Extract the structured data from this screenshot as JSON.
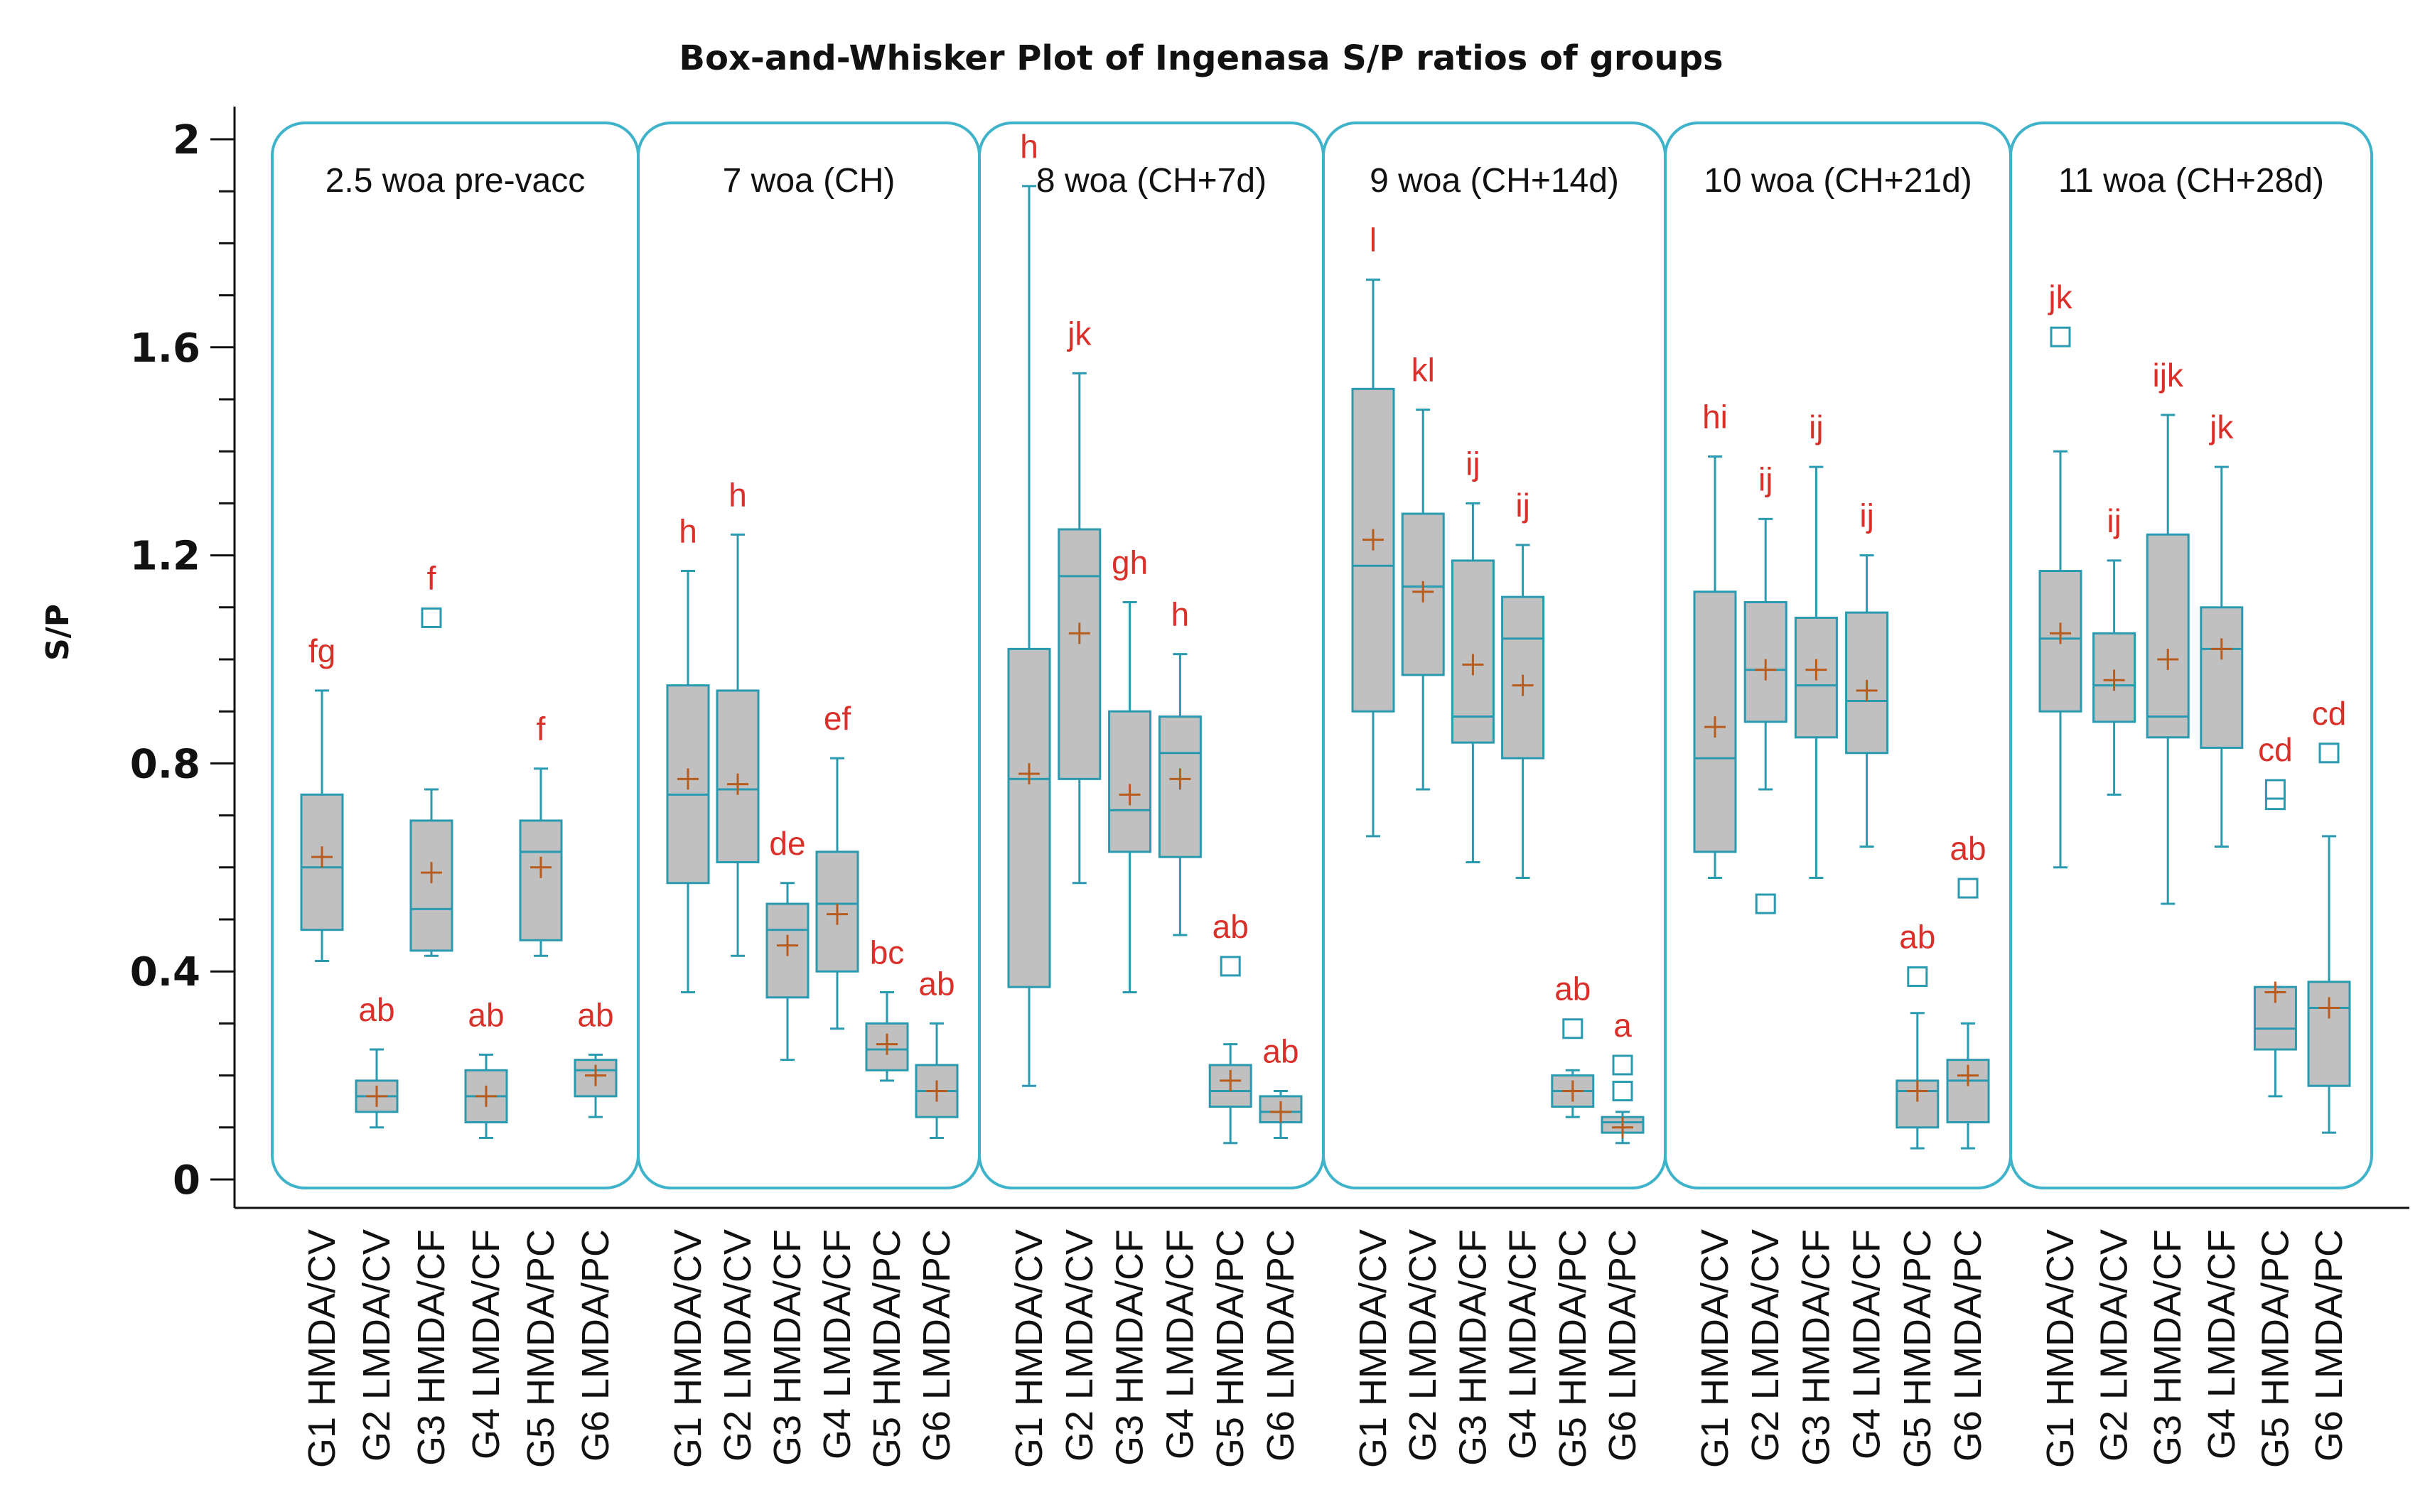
{
  "colors": {
    "panel_border": "#3fb3c9",
    "box_fill": "#c0c0c0",
    "box_stroke": "#2a9ab0",
    "mean_marker": "#b85c1e",
    "letter": "#d9302a",
    "axis": "#111111",
    "outlier_alt": "#2a8a6a"
  },
  "chart_data": {
    "type": "box",
    "title": "Box-and-Whisker Plot of Ingenasa S/P ratios of groups",
    "ylabel": "S/P",
    "xlabel": "",
    "ylim": [
      0,
      2.05
    ],
    "yticks": [
      {
        "value": 0,
        "label": "0"
      },
      {
        "value": 0.4,
        "label": "0.4"
      },
      {
        "value": 0.8,
        "label": "0.8"
      },
      {
        "value": 1.2,
        "label": "1.2"
      },
      {
        "value": 1.6,
        "label": "1.6"
      },
      {
        "value": 2.0,
        "label": "2"
      }
    ],
    "yminor_step": 0.1,
    "panels": [
      {
        "label": "2.5 woa pre-vacc",
        "groups": [
          {
            "name": "G1 HMDA/CV",
            "min": 0.42,
            "q1": 0.48,
            "median": 0.6,
            "q3": 0.74,
            "max": 0.94,
            "mean": 0.62,
            "letter": "fg",
            "outliers": []
          },
          {
            "name": "G2 LMDA/CV",
            "min": 0.1,
            "q1": 0.13,
            "median": 0.16,
            "q3": 0.19,
            "max": 0.25,
            "mean": 0.16,
            "letter": "ab",
            "outliers": []
          },
          {
            "name": "G3 HMDA/CF",
            "min": 0.43,
            "q1": 0.44,
            "median": 0.52,
            "q3": 0.69,
            "max": 0.75,
            "mean": 0.59,
            "letter": "f",
            "outliers": [
              1.08
            ]
          },
          {
            "name": "G4 LMDA/CF",
            "min": 0.08,
            "q1": 0.11,
            "median": 0.16,
            "q3": 0.21,
            "max": 0.24,
            "mean": 0.16,
            "letter": "ab",
            "outliers": []
          },
          {
            "name": "G5 HMDA/PC",
            "min": 0.43,
            "q1": 0.46,
            "median": 0.63,
            "q3": 0.69,
            "max": 0.79,
            "mean": 0.6,
            "letter": "f",
            "outliers": []
          },
          {
            "name": "G6 LMDA/PC",
            "min": 0.12,
            "q1": 0.16,
            "median": 0.21,
            "q3": 0.23,
            "max": 0.24,
            "mean": 0.2,
            "letter": "ab",
            "outliers": []
          }
        ]
      },
      {
        "label": "7 woa (CH)",
        "groups": [
          {
            "name": "G1 HMDA/CV",
            "min": 0.36,
            "q1": 0.57,
            "median": 0.74,
            "q3": 0.95,
            "max": 1.17,
            "mean": 0.77,
            "letter": "h",
            "outliers": []
          },
          {
            "name": "G2 LMDA/CV",
            "min": 0.43,
            "q1": 0.61,
            "median": 0.75,
            "q3": 0.94,
            "max": 1.24,
            "mean": 0.76,
            "letter": "h",
            "outliers": []
          },
          {
            "name": "G3 HMDA/CF",
            "min": 0.23,
            "q1": 0.35,
            "median": 0.48,
            "q3": 0.53,
            "max": 0.57,
            "mean": 0.45,
            "letter": "de",
            "outliers": []
          },
          {
            "name": "G4 LMDA/CF",
            "min": 0.29,
            "q1": 0.4,
            "median": 0.53,
            "q3": 0.63,
            "max": 0.81,
            "mean": 0.51,
            "letter": "ef",
            "outliers": []
          },
          {
            "name": "G5 HMDA/PC",
            "min": 0.19,
            "q1": 0.21,
            "median": 0.25,
            "q3": 0.3,
            "max": 0.36,
            "mean": 0.26,
            "letter": "bc",
            "outliers": []
          },
          {
            "name": "G6 LMDA/PC",
            "min": 0.08,
            "q1": 0.12,
            "median": 0.17,
            "q3": 0.22,
            "max": 0.3,
            "mean": 0.17,
            "letter": "ab",
            "outliers": []
          }
        ]
      },
      {
        "label": "8 woa (CH+7d)",
        "groups": [
          {
            "name": "G1 HMDA/CV",
            "min": 0.18,
            "q1": 0.37,
            "median": 0.77,
            "q3": 1.02,
            "max": 1.91,
            "mean": 0.78,
            "letter": "h",
            "outliers": []
          },
          {
            "name": "G2 LMDA/CV",
            "min": 0.57,
            "q1": 0.77,
            "median": 1.16,
            "q3": 1.25,
            "max": 1.55,
            "mean": 1.05,
            "letter": "jk",
            "outliers": []
          },
          {
            "name": "G3 HMDA/CF",
            "min": 0.36,
            "q1": 0.63,
            "median": 0.71,
            "q3": 0.9,
            "max": 1.11,
            "mean": 0.74,
            "letter": "gh",
            "outliers": []
          },
          {
            "name": "G4 LMDA/CF",
            "min": 0.47,
            "q1": 0.62,
            "median": 0.82,
            "q3": 0.89,
            "max": 1.01,
            "mean": 0.77,
            "letter": "h",
            "outliers": []
          },
          {
            "name": "G5 HMDA/PC",
            "min": 0.07,
            "q1": 0.14,
            "median": 0.17,
            "q3": 0.22,
            "max": 0.26,
            "mean": 0.19,
            "letter": "ab",
            "outliers": [
              0.41
            ]
          },
          {
            "name": "G6 LMDA/PC",
            "min": 0.08,
            "q1": 0.11,
            "median": 0.13,
            "q3": 0.16,
            "max": 0.17,
            "mean": 0.13,
            "letter": "ab",
            "outliers": []
          }
        ]
      },
      {
        "label": "9 woa (CH+14d)",
        "groups": [
          {
            "name": "G1 HMDA/CV",
            "min": 0.66,
            "q1": 0.9,
            "median": 1.18,
            "q3": 1.52,
            "max": 1.73,
            "mean": 1.23,
            "letter": "l",
            "outliers": []
          },
          {
            "name": "G2 LMDA/CV",
            "min": 0.75,
            "q1": 0.97,
            "median": 1.14,
            "q3": 1.28,
            "max": 1.48,
            "mean": 1.13,
            "letter": "kl",
            "outliers": []
          },
          {
            "name": "G3 HMDA/CF",
            "min": 0.61,
            "q1": 0.84,
            "median": 0.89,
            "q3": 1.19,
            "max": 1.3,
            "mean": 0.99,
            "letter": "ij",
            "outliers": []
          },
          {
            "name": "G4 LMDA/CF",
            "min": 0.58,
            "q1": 0.81,
            "median": 1.04,
            "q3": 1.12,
            "max": 1.22,
            "mean": 0.95,
            "letter": "ij",
            "outliers": []
          },
          {
            "name": "G5 HMDA/PC",
            "min": 0.12,
            "q1": 0.14,
            "median": 0.17,
            "q3": 0.2,
            "max": 0.21,
            "mean": 0.17,
            "letter": "ab",
            "outliers": [
              0.29
            ]
          },
          {
            "name": "G6 LMDA/PC",
            "min": 0.07,
            "q1": 0.09,
            "median": 0.11,
            "q3": 0.12,
            "max": 0.13,
            "mean": 0.1,
            "letter": "a",
            "outliers": [
              0.17,
              0.22
            ]
          }
        ]
      },
      {
        "label": "10 woa (CH+21d)",
        "groups": [
          {
            "name": "G1 HMDA/CV",
            "min": 0.58,
            "q1": 0.63,
            "median": 0.81,
            "q3": 1.13,
            "max": 1.39,
            "mean": 0.87,
            "letter": "hi",
            "outliers": []
          },
          {
            "name": "G2 LMDA/CV",
            "min": 0.75,
            "q1": 0.88,
            "median": 0.98,
            "q3": 1.11,
            "max": 1.27,
            "mean": 0.98,
            "letter": "ij",
            "outliers": [
              0.53
            ]
          },
          {
            "name": "G3 HMDA/CF",
            "min": 0.58,
            "q1": 0.85,
            "median": 0.95,
            "q3": 1.08,
            "max": 1.37,
            "mean": 0.98,
            "letter": "ij",
            "outliers": []
          },
          {
            "name": "G4 LMDA/CF",
            "min": 0.64,
            "q1": 0.82,
            "median": 0.92,
            "q3": 1.09,
            "max": 1.2,
            "mean": 0.94,
            "letter": "ij",
            "outliers": []
          },
          {
            "name": "G5 HMDA/PC",
            "min": 0.06,
            "q1": 0.1,
            "median": 0.17,
            "q3": 0.19,
            "max": 0.32,
            "mean": 0.17,
            "letter": "ab",
            "outliers": [
              0.39
            ]
          },
          {
            "name": "G6 LMDA/PC",
            "min": 0.06,
            "q1": 0.11,
            "median": 0.19,
            "q3": 0.23,
            "max": 0.3,
            "mean": 0.2,
            "letter": "ab",
            "outliers": [
              0.56
            ]
          }
        ]
      },
      {
        "label": "11 woa (CH+28d)",
        "groups": [
          {
            "name": "G1 HMDA/CV",
            "min": 0.6,
            "q1": 0.9,
            "median": 1.04,
            "q3": 1.17,
            "max": 1.4,
            "mean": 1.05,
            "letter": "jk",
            "outliers": [
              1.62
            ]
          },
          {
            "name": "G2 LMDA/CV",
            "min": 0.74,
            "q1": 0.88,
            "median": 0.95,
            "q3": 1.05,
            "max": 1.19,
            "mean": 0.96,
            "letter": "ij",
            "outliers": []
          },
          {
            "name": "G3 HMDA/CF",
            "min": 0.53,
            "q1": 0.85,
            "median": 0.89,
            "q3": 1.24,
            "max": 1.47,
            "mean": 1.0,
            "letter": "ijk",
            "outliers": []
          },
          {
            "name": "G4 LMDA/CF",
            "min": 0.64,
            "q1": 0.83,
            "median": 1.02,
            "q3": 1.1,
            "max": 1.37,
            "mean": 1.02,
            "letter": "jk",
            "outliers": []
          },
          {
            "name": "G5 HMDA/PC",
            "min": 0.16,
            "q1": 0.25,
            "median": 0.29,
            "q3": 0.37,
            "max": 0.37,
            "mean": 0.36,
            "letter": "cd",
            "outliers": [
              0.73,
              0.75
            ]
          },
          {
            "name": "G6 LMDA/PC",
            "min": 0.09,
            "q1": 0.18,
            "median": 0.33,
            "q3": 0.38,
            "max": 0.66,
            "mean": 0.33,
            "letter": "cd",
            "outliers": [
              0.82
            ]
          }
        ]
      }
    ]
  }
}
